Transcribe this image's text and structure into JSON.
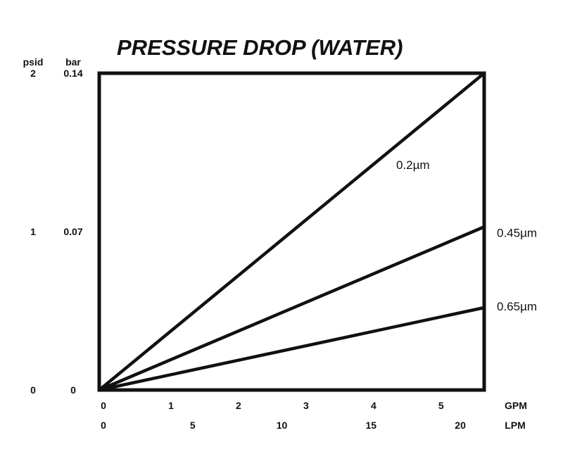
{
  "chart_data": {
    "type": "line",
    "title": "PRESSURE DROP (WATER)",
    "y_axes": [
      {
        "unit": "psid",
        "ticks": [
          "2",
          "1",
          "0"
        ],
        "values": [
          2,
          1,
          0
        ]
      },
      {
        "unit": "bar",
        "ticks": [
          "0.14",
          "0.07",
          "0"
        ],
        "values": [
          0.14,
          0.07,
          0
        ]
      }
    ],
    "x_axes": [
      {
        "unit": "GPM",
        "ticks": [
          "0",
          "1",
          "2",
          "3",
          "4",
          "5"
        ],
        "values": [
          0,
          1,
          2,
          3,
          4,
          5
        ]
      },
      {
        "unit": "LPM",
        "ticks": [
          "0",
          "5",
          "10",
          "15",
          "20"
        ],
        "values": [
          0,
          5,
          10,
          15,
          20
        ]
      }
    ],
    "xlim": [
      0,
      5.7
    ],
    "ylim": [
      0,
      2
    ],
    "grid": false,
    "series": [
      {
        "name": "0.2µm",
        "x": [
          0,
          5.7
        ],
        "y": [
          0,
          2.0
        ]
      },
      {
        "name": "0.45µm",
        "x": [
          0,
          5.7
        ],
        "y": [
          0,
          1.03
        ]
      },
      {
        "name": "0.65µm",
        "x": [
          0,
          5.7
        ],
        "y": [
          0,
          0.52
        ]
      }
    ]
  }
}
